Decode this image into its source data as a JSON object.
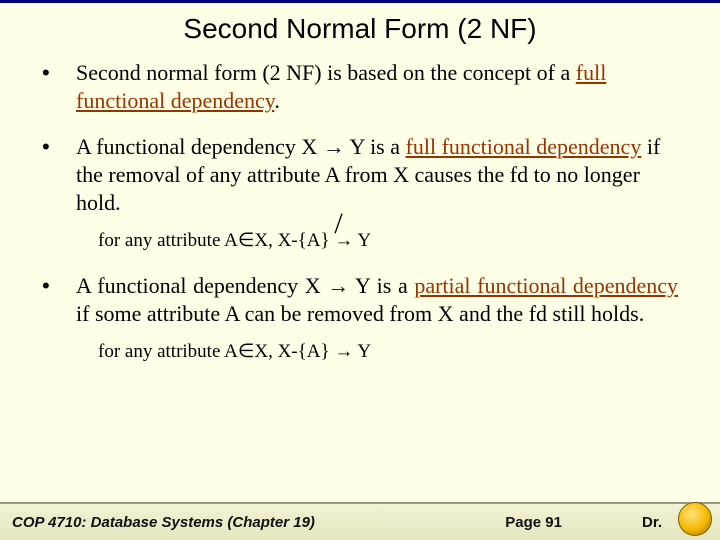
{
  "colors": {
    "background": "#ffffe8",
    "rule": "#000080",
    "term": "#993300",
    "text": "#000000",
    "footer_bg_top": "#f2f2d6",
    "footer_bg_bottom": "#e6e6c0",
    "footer_border": "#9a9a7a"
  },
  "typography": {
    "title_family": "Arial",
    "title_size_pt": 21,
    "body_family": "Times New Roman",
    "body_size_pt": 16,
    "sub_size_pt": 14,
    "footer_size_pt": 11
  },
  "title": "Second Normal Form (2 NF)",
  "bullets": [
    {
      "pre": "Second normal form (2 NF) is based on the concept of a ",
      "term": "full functional dependency",
      "post": ".",
      "justify": false
    },
    {
      "pre": "A functional dependency X → Y is a ",
      "term": "full functional dependency",
      "post": " if the removal of any attribute A from X causes the fd to no longer hold.",
      "justify": false
    },
    {
      "pre": "A functional dependency X → Y is a ",
      "term": "partial functional dependency",
      "post": " if some attribute A can be removed from X and the fd still holds.",
      "justify": true
    }
  ],
  "sub1": {
    "prefix": "for any attribute A∈X, X-{A} ",
    "arrow": "→",
    "slash": "/",
    "suffix": " Y"
  },
  "sub2": "for any attribute A∈X, X-{A} → Y",
  "footer": {
    "left": "COP 4710: Database Systems  (Chapter 19)",
    "mid": "Page 91",
    "right": "Dr."
  }
}
